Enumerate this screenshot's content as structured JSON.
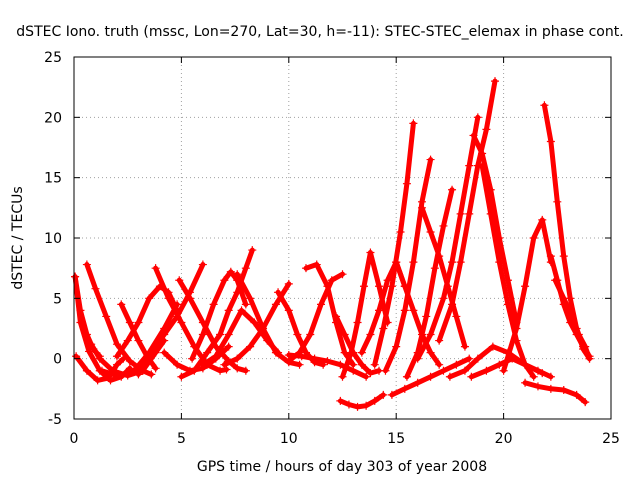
{
  "chart_data": {
    "type": "scatter",
    "title": "dSTEC Iono. truth (mssc, Lon=270, Lat=30, h=-11): STEC-STEC_elemax in phase cont.",
    "xlabel": "GPS time / hours of day 303 of year 2008",
    "ylabel": "dSTEC  / TECUs",
    "xlim": [
      0,
      25
    ],
    "ylim": [
      -5,
      25
    ],
    "xticks": [
      0,
      5,
      10,
      15,
      20,
      25
    ],
    "yticks": [
      -5,
      0,
      5,
      10,
      15,
      20,
      25
    ],
    "grid": true,
    "marker": "+",
    "color": "#ff0000",
    "series": [
      {
        "x": [
          0.05,
          0.3,
          0.7,
          1.2,
          1.7,
          2.2,
          2.6
        ],
        "y": [
          6.8,
          3.0,
          0.6,
          -1.0,
          -1.8,
          -1.5,
          -0.8
        ]
      },
      {
        "x": [
          0.05,
          0.3,
          0.6,
          0.9,
          1.2
        ],
        "y": [
          6.8,
          4.0,
          2.0,
          0.8,
          0.2
        ]
      },
      {
        "x": [
          0.1,
          0.6,
          1.1,
          1.6,
          2.0,
          2.3
        ],
        "y": [
          0.2,
          -1.0,
          -1.8,
          -1.6,
          -0.5,
          0.0
        ]
      },
      {
        "x": [
          0.6,
          1.0,
          1.5,
          2.0,
          2.6,
          3.2,
          3.6
        ],
        "y": [
          7.8,
          5.8,
          3.5,
          1.2,
          -0.2,
          -1.0,
          -1.3
        ]
      },
      {
        "x": [
          0.8,
          1.2,
          1.8,
          2.5,
          3.2,
          3.8,
          4.2
        ],
        "y": [
          1.2,
          0.0,
          -1.0,
          -1.4,
          -1.0,
          0.5,
          1.5
        ]
      },
      {
        "x": [
          2.2,
          2.6,
          3.0,
          3.4,
          3.8
        ],
        "y": [
          4.5,
          3.0,
          1.5,
          0.2,
          -0.8
        ]
      },
      {
        "x": [
          2.0,
          2.5,
          3.0,
          3.5,
          4.0,
          4.4,
          4.8
        ],
        "y": [
          0.2,
          1.5,
          3.0,
          5.0,
          6.0,
          5.5,
          4.0
        ]
      },
      {
        "x": [
          1.3,
          2.0,
          2.8,
          3.5,
          4.2,
          4.8
        ],
        "y": [
          -1.0,
          -1.4,
          -1.0,
          0.5,
          2.5,
          4.5
        ]
      },
      {
        "x": [
          3.0,
          3.6,
          4.2,
          4.8,
          5.4,
          6.0
        ],
        "y": [
          -1.3,
          0.5,
          2.0,
          3.5,
          5.5,
          7.8
        ]
      },
      {
        "x": [
          3.8,
          4.4,
          5.0,
          5.6,
          6.2,
          6.8,
          7.1
        ],
        "y": [
          7.5,
          5.0,
          3.0,
          1.0,
          -0.5,
          -1.0,
          -0.9
        ]
      },
      {
        "x": [
          4.2,
          4.8,
          5.4,
          6.0,
          6.6,
          7.2
        ],
        "y": [
          0.5,
          -0.5,
          -1.0,
          -0.8,
          0.0,
          1.0
        ]
      },
      {
        "x": [
          4.9,
          5.4,
          6.0,
          6.6,
          7.2,
          7.6,
          8.0
        ],
        "y": [
          6.5,
          5.0,
          3.0,
          1.0,
          -0.2,
          -0.8,
          -1.0
        ]
      },
      {
        "x": [
          5.0,
          5.6,
          6.2,
          6.8,
          7.2,
          7.6,
          8.0,
          8.3
        ],
        "y": [
          -1.5,
          -1.0,
          0.5,
          2.0,
          4.0,
          5.5,
          7.5,
          9.0
        ]
      },
      {
        "x": [
          5.5,
          6.0,
          6.5,
          7.0,
          7.3,
          7.6,
          8.0
        ],
        "y": [
          0.0,
          2.0,
          4.5,
          6.5,
          7.2,
          6.5,
          4.5
        ]
      },
      {
        "x": [
          6.0,
          6.6,
          7.2,
          7.8,
          8.4,
          9.0,
          9.5
        ],
        "y": [
          -0.5,
          0.2,
          2.0,
          4.0,
          3.0,
          1.5,
          0.5
        ]
      },
      {
        "x": [
          7.0,
          7.6,
          8.2,
          8.8,
          9.4,
          10.0
        ],
        "y": [
          -0.5,
          0.0,
          1.0,
          2.5,
          4.5,
          6.2
        ]
      },
      {
        "x": [
          7.6,
          8.2,
          8.8,
          9.4,
          10.0,
          10.5
        ],
        "y": [
          7.0,
          5.0,
          2.5,
          0.5,
          -0.3,
          -0.5
        ]
      },
      {
        "x": [
          9.5,
          10.0,
          10.4,
          10.8,
          11.2,
          11.6
        ],
        "y": [
          5.5,
          4.0,
          2.0,
          0.5,
          -0.3,
          -0.5
        ]
      },
      {
        "x": [
          10.0,
          10.5,
          11.0,
          11.5,
          12.0,
          12.5
        ],
        "y": [
          -0.2,
          0.5,
          2.0,
          4.5,
          6.5,
          7.0
        ]
      },
      {
        "x": [
          10.8,
          11.3,
          11.8,
          12.2,
          12.6,
          13.0
        ],
        "y": [
          7.5,
          7.8,
          6.0,
          3.0,
          0.5,
          -0.5
        ]
      },
      {
        "x": [
          10.0,
          10.6,
          11.2,
          11.8,
          12.4,
          13.0,
          13.6
        ],
        "y": [
          0.3,
          0.2,
          0.0,
          -0.2,
          -0.5,
          -1.0,
          -1.5
        ]
      },
      {
        "x": [
          12.4,
          12.8,
          13.2,
          13.6,
          14.0,
          14.4
        ],
        "y": [
          -3.5,
          -3.8,
          -4.0,
          -3.9,
          -3.5,
          -3.0
        ]
      },
      {
        "x": [
          12.2,
          12.6,
          13.0,
          13.4,
          13.8,
          14.2
        ],
        "y": [
          3.5,
          2.0,
          0.5,
          -0.5,
          -1.2,
          -1.0
        ]
      },
      {
        "x": [
          12.5,
          12.9,
          13.2,
          13.5,
          13.8,
          14.2,
          14.6
        ],
        "y": [
          -1.5,
          0.5,
          3.0,
          6.0,
          8.8,
          6.0,
          3.0
        ]
      },
      {
        "x": [
          13.4,
          13.8,
          14.2,
          14.6,
          15.0,
          15.4
        ],
        "y": [
          0.5,
          2.0,
          4.0,
          6.5,
          8.0,
          6.0
        ]
      },
      {
        "x": [
          14.0,
          14.4,
          14.8,
          15.2,
          15.5,
          15.8
        ],
        "y": [
          -0.5,
          2.5,
          6.0,
          10.5,
          14.5,
          19.5
        ]
      },
      {
        "x": [
          14.5,
          15.0,
          15.4,
          15.8,
          16.2,
          16.6
        ],
        "y": [
          -1.0,
          1.0,
          4.0,
          8.0,
          13.0,
          16.5
        ]
      },
      {
        "x": [
          15.5,
          16.0,
          16.4,
          16.8,
          17.2,
          17.6
        ],
        "y": [
          -1.5,
          0.5,
          3.5,
          7.5,
          11.0,
          14.0
        ]
      },
      {
        "x": [
          14.8,
          15.4,
          16.0,
          16.6,
          17.2,
          17.8,
          18.4
        ],
        "y": [
          -3.0,
          -2.5,
          -2.0,
          -1.5,
          -1.0,
          -0.5,
          0.0
        ]
      },
      {
        "x": [
          15.0,
          15.4,
          15.8,
          16.2,
          16.6,
          17.0
        ],
        "y": [
          8.0,
          6.0,
          4.0,
          2.0,
          0.5,
          -0.5
        ]
      },
      {
        "x": [
          16.2,
          16.6,
          17.0,
          17.4,
          17.8,
          18.2
        ],
        "y": [
          12.5,
          10.5,
          8.5,
          6.0,
          3.5,
          1.0
        ]
      },
      {
        "x": [
          16.0,
          16.6,
          17.2,
          17.6,
          18.0,
          18.4,
          18.8
        ],
        "y": [
          0.0,
          2.0,
          5.0,
          8.0,
          12.0,
          16.0,
          20.0
        ]
      },
      {
        "x": [
          17.0,
          17.6,
          18.0,
          18.4,
          18.8,
          19.2,
          19.6
        ],
        "y": [
          1.5,
          4.5,
          8.0,
          12.0,
          16.0,
          19.0,
          23.0
        ]
      },
      {
        "x": [
          18.6,
          19.0,
          19.4,
          19.8,
          20.2,
          20.6
        ],
        "y": [
          18.5,
          17.0,
          14.0,
          10.0,
          6.5,
          3.0
        ]
      },
      {
        "x": [
          19.0,
          19.4,
          19.8,
          20.2,
          20.6,
          21.0,
          21.4
        ],
        "y": [
          16.0,
          12.0,
          8.0,
          4.5,
          1.5,
          -0.5,
          -1.5
        ]
      },
      {
        "x": [
          17.5,
          18.2,
          18.8,
          19.5,
          20.2,
          21.0,
          21.8
        ],
        "y": [
          -1.5,
          -1.0,
          0.0,
          1.0,
          0.5,
          -0.5,
          -1.2
        ]
      },
      {
        "x": [
          18.5,
          19.2,
          19.8,
          20.4,
          21.0,
          21.6,
          22.2
        ],
        "y": [
          -1.5,
          -1.0,
          -0.5,
          0.0,
          -0.5,
          -1.0,
          -1.5
        ]
      },
      {
        "x": [
          20.0,
          20.6,
          21.0,
          21.4,
          21.8,
          22.2
        ],
        "y": [
          -1.0,
          2.5,
          6.0,
          10.0,
          11.5,
          8.0
        ]
      },
      {
        "x": [
          21.0,
          21.6,
          22.2,
          22.8,
          23.4,
          23.8
        ],
        "y": [
          -2.0,
          -2.3,
          -2.5,
          -2.6,
          -3.0,
          -3.6
        ]
      },
      {
        "x": [
          21.9,
          22.2,
          22.5,
          22.8,
          23.1,
          23.4,
          23.7,
          24.0
        ],
        "y": [
          21.0,
          18.0,
          13.0,
          8.5,
          5.0,
          2.5,
          0.8,
          0.0
        ]
      },
      {
        "x": [
          22.2,
          22.5,
          22.8,
          23.1,
          23.4,
          23.7,
          24.0
        ],
        "y": [
          8.5,
          6.5,
          4.5,
          3.0,
          2.0,
          1.0,
          0.2
        ]
      },
      {
        "x": [
          22.4,
          22.8,
          23.2,
          23.5,
          23.8,
          24.0
        ],
        "y": [
          6.5,
          5.0,
          3.5,
          2.0,
          1.0,
          0.0
        ]
      }
    ]
  }
}
